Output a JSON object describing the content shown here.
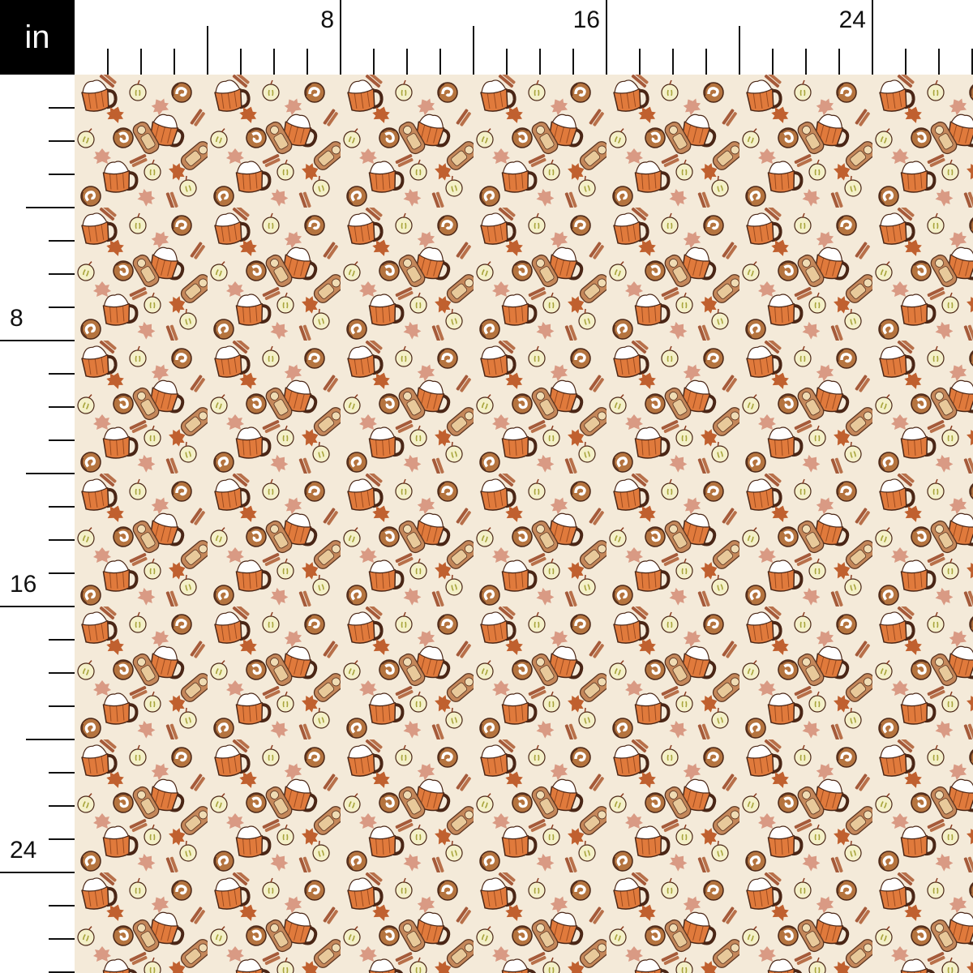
{
  "ruler": {
    "unit": "in",
    "top_labels": [
      "8",
      "16",
      "24"
    ],
    "left_labels": [
      "8",
      "16",
      "24"
    ]
  },
  "fabric": {
    "motifs": [
      "pumpkin-spice-mug",
      "apple-half",
      "cinnamon-roll",
      "bread-loaf",
      "oak-leaf",
      "cinnamon-stick"
    ],
    "colors": {
      "background": "#f4ead9",
      "mug": "#e07a3c",
      "cream": "#ffffff",
      "outline": "#4a2616",
      "apple": "#f4f0c8",
      "roll": "#b5743f",
      "loaf": "#c4875a",
      "leaf_rust": "#c0602f",
      "leaf_pink": "#d99a84",
      "stick": "#a55a3a"
    }
  }
}
